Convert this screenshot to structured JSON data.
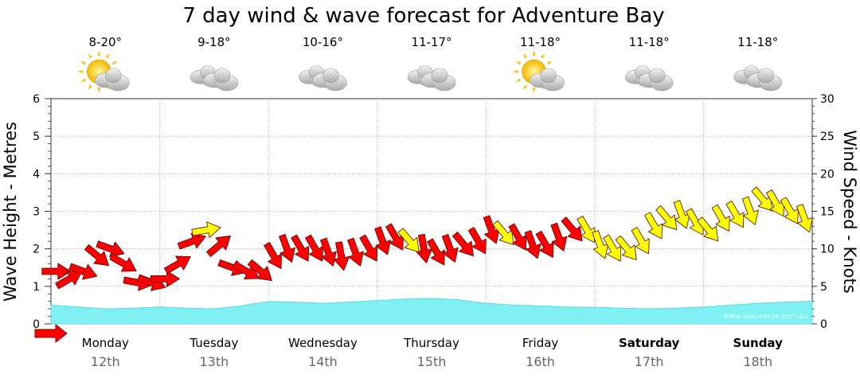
{
  "chart_data": {
    "type": "line",
    "title": "7 day wind & wave forecast for Adventure Bay",
    "ylabel_left": "Wave Height - Metres",
    "ylabel_right": "Wind Speed - Knots",
    "ylim_left": [
      0,
      6
    ],
    "ylim_right": [
      0,
      30
    ],
    "yticks_left": [
      "0",
      "1",
      "2",
      "3",
      "4",
      "5",
      "6"
    ],
    "yticks_right": [
      "0",
      "5",
      "10",
      "15",
      "20",
      "25",
      "30"
    ],
    "grid": true,
    "watermark": "www.seabreeze.com.au",
    "days": [
      {
        "name": "Monday",
        "date": "12th",
        "temp": "8-20°",
        "icon": "partly-sunny-icon",
        "bold": false
      },
      {
        "name": "Tuesday",
        "date": "13th",
        "temp": "9-18°",
        "icon": "cloudy-icon",
        "bold": false
      },
      {
        "name": "Wednesday",
        "date": "14th",
        "temp": "10-16°",
        "icon": "cloudy-icon",
        "bold": false
      },
      {
        "name": "Thursday",
        "date": "15th",
        "temp": "11-17°",
        "icon": "cloudy-icon",
        "bold": false
      },
      {
        "name": "Friday",
        "date": "16th",
        "temp": "11-18°",
        "icon": "partly-sunny-icon",
        "bold": false
      },
      {
        "name": "Saturday",
        "date": "17th",
        "temp": "11-18°",
        "icon": "cloudy-icon",
        "bold": true
      },
      {
        "name": "Sunday",
        "date": "18th",
        "temp": "11-18°",
        "icon": "cloudy-icon",
        "bold": true
      }
    ],
    "wave_series": {
      "name": "Wave Height",
      "unit": "m",
      "x_day": [
        0,
        0.25,
        0.5,
        0.75,
        1,
        1.25,
        1.5,
        1.75,
        2,
        2.25,
        2.5,
        2.75,
        3,
        3.25,
        3.5,
        3.75,
        4,
        4.25,
        4.5,
        4.75,
        5,
        5.25,
        5.5,
        5.75,
        6,
        6.25,
        6.5,
        6.75,
        7
      ],
      "values": [
        0.5,
        0.45,
        0.4,
        0.42,
        0.45,
        0.42,
        0.4,
        0.48,
        0.6,
        0.58,
        0.55,
        0.58,
        0.62,
        0.66,
        0.68,
        0.64,
        0.55,
        0.5,
        0.48,
        0.45,
        0.44,
        0.42,
        0.4,
        0.42,
        0.45,
        0.5,
        0.55,
        0.58,
        0.6
      ]
    },
    "wind_series": {
      "name": "Wind Speed",
      "unit": "knots",
      "legend_colors": {
        "red": "#ff0000",
        "yellow": "#ffff00",
        "wave": "#7ff0f4"
      },
      "x_day": [
        0.0,
        0.12,
        0.25,
        0.38,
        0.5,
        0.62,
        0.75,
        0.88,
        1.0,
        1.12,
        1.25,
        1.38,
        1.5,
        1.62,
        1.75,
        1.88,
        2.0,
        2.12,
        2.25,
        2.38,
        2.5,
        2.62,
        2.75,
        2.88,
        3.0,
        3.12,
        3.25,
        3.38,
        3.5,
        3.62,
        3.75,
        3.88,
        4.0,
        4.12,
        4.25,
        4.38,
        4.5,
        4.62,
        4.75,
        4.88,
        5.0,
        5.12,
        5.25,
        5.38,
        5.5,
        5.62,
        5.75,
        5.88,
        6.0,
        6.12,
        6.25,
        6.38,
        6.5,
        6.62,
        6.75,
        6.88
      ],
      "values": [
        7,
        6,
        7,
        9,
        10,
        8,
        5.5,
        5.5,
        6,
        8,
        11,
        12.5,
        10.5,
        7.5,
        7,
        7,
        9,
        10,
        10,
        10,
        9.5,
        9,
        9.5,
        10,
        11,
        11.5,
        11,
        10,
        9.5,
        10,
        10.5,
        11,
        12.5,
        12,
        11.5,
        10.5,
        10.5,
        11.5,
        12.5,
        12.5,
        10.5,
        10,
        10,
        11,
        13,
        14,
        14.5,
        13.5,
        12.5,
        14,
        14.5,
        15,
        16.5,
        16,
        15,
        14
      ],
      "direction_deg": [
        180,
        150,
        200,
        220,
        200,
        210,
        190,
        200,
        180,
        150,
        160,
        170,
        140,
        200,
        210,
        220,
        240,
        250,
        240,
        240,
        250,
        260,
        250,
        240,
        250,
        240,
        230,
        260,
        240,
        250,
        230,
        240,
        250,
        230,
        240,
        250,
        240,
        250,
        230,
        240,
        250,
        240,
        230,
        240,
        240,
        230,
        250,
        240,
        230,
        240,
        240,
        250,
        230,
        240,
        240,
        250
      ],
      "color": [
        "red",
        "red",
        "red",
        "red",
        "red",
        "red",
        "red",
        "red",
        "red",
        "red",
        "red",
        "yellow",
        "red",
        "red",
        "red",
        "red",
        "red",
        "red",
        "red",
        "red",
        "red",
        "red",
        "red",
        "red",
        "red",
        "red",
        "yellow",
        "red",
        "red",
        "red",
        "red",
        "red",
        "red",
        "yellow",
        "red",
        "red",
        "red",
        "red",
        "red",
        "yellow",
        "yellow",
        "yellow",
        "yellow",
        "yellow",
        "yellow",
        "yellow",
        "yellow",
        "yellow",
        "yellow",
        "yellow",
        "yellow",
        "yellow",
        "yellow",
        "yellow",
        "yellow",
        "yellow"
      ]
    }
  }
}
